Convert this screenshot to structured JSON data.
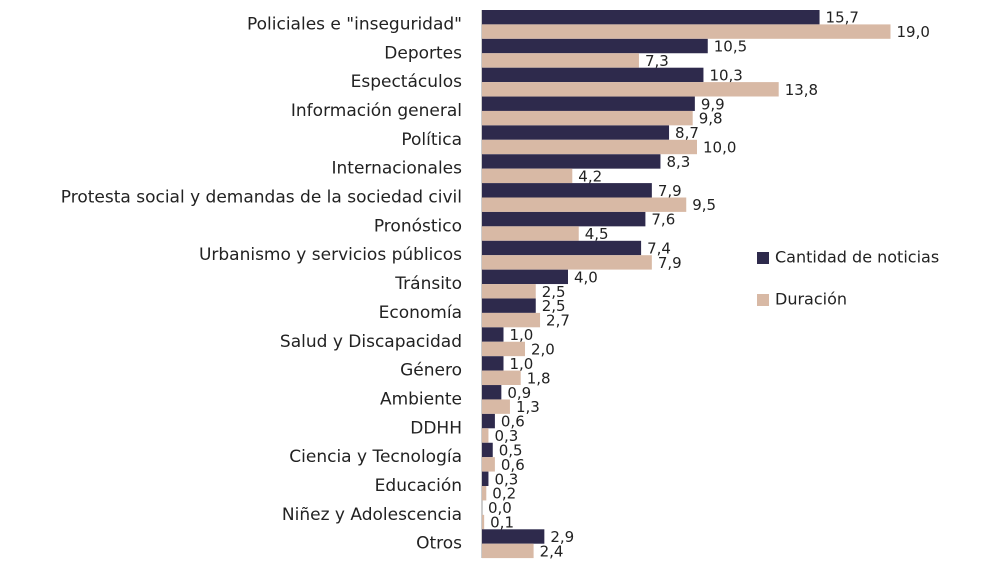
{
  "chart_data": {
    "type": "bar",
    "orientation": "horizontal",
    "categories": [
      "Policiales e \"inseguridad\"",
      "Deportes",
      "Espectáculos",
      "Información general",
      "Política",
      "Internacionales",
      "Protesta social y demandas de la sociedad civil",
      "Pronóstico",
      "Urbanismo y servicios públicos",
      "Tránsito",
      "Economía",
      "Salud y Discapacidad",
      "Género",
      "Ambiente",
      "DDHH",
      "Ciencia y Tecnología",
      "Educación",
      "Niñez y Adolescencia",
      "Otros"
    ],
    "series": [
      {
        "name": "Cantidad de noticias",
        "color": "#2e2a4c",
        "values": [
          15.7,
          10.5,
          10.3,
          9.9,
          8.7,
          8.3,
          7.9,
          7.6,
          7.4,
          4.0,
          2.5,
          1.0,
          1.0,
          0.9,
          0.6,
          0.5,
          0.3,
          0.0,
          2.9
        ],
        "value_labels": [
          "15,7",
          "10,5",
          "10,3",
          "9,9",
          "8,7",
          "8,3",
          "7,9",
          "7,6",
          "7,4",
          "4,0",
          "2,5",
          "1,0",
          "1,0",
          "0,9",
          "0,6",
          "0,5",
          "0,3",
          "0,0",
          "2,9"
        ]
      },
      {
        "name": "Duración",
        "color": "#d8b9a5",
        "values": [
          19.0,
          7.3,
          13.8,
          9.8,
          10.0,
          4.2,
          9.5,
          4.5,
          7.9,
          2.5,
          2.7,
          2.0,
          1.8,
          1.3,
          0.3,
          0.6,
          0.2,
          0.1,
          2.4
        ],
        "value_labels": [
          "19,0",
          "7,3",
          "13,8",
          "9,8",
          "10,0",
          "4,2",
          "9,5",
          "4,5",
          "7,9",
          "2,5",
          "2,7",
          "2,0",
          "1,8",
          "1,3",
          "0,3",
          "0,6",
          "0,2",
          "0,1",
          "2,4"
        ]
      }
    ],
    "xlim": [
      0,
      20
    ],
    "legend": "right"
  }
}
